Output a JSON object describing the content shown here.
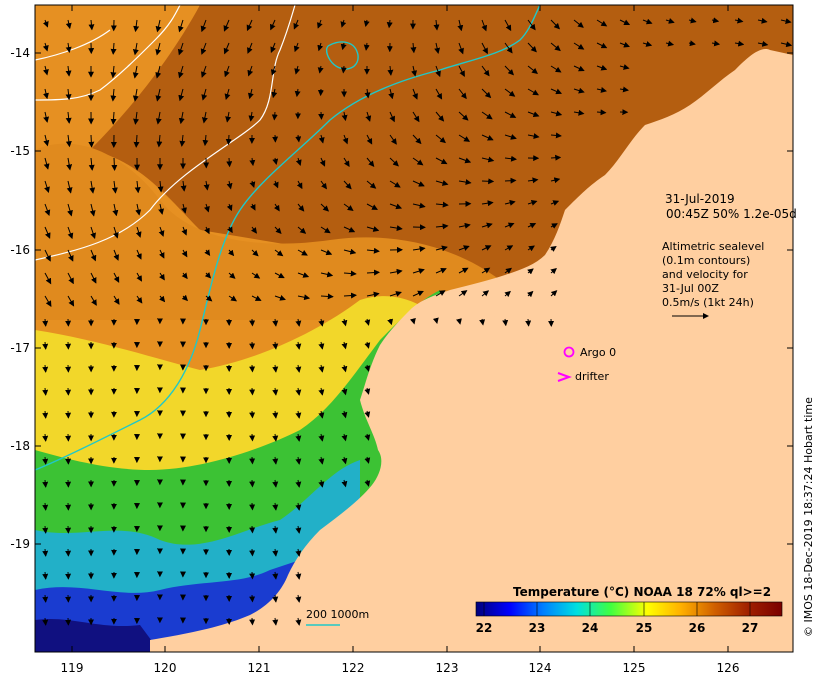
{
  "map": {
    "lon_ticks": [
      "119",
      "120",
      "121",
      "122",
      "123",
      "124",
      "125",
      "126"
    ],
    "lat_ticks": [
      "-14",
      "-15",
      "-16",
      "-17",
      "-18",
      "-19"
    ],
    "info": {
      "date": "31-Jul-2019",
      "time_line": "00:45Z  50% 1.2e-05d",
      "alt_line1": "Altimetric sealevel",
      "alt_line2": "(0.1m contours)",
      "alt_line3": "and velocity for",
      "alt_line4": "31-Jul 00Z",
      "alt_line5": "0.5m/s (1kt 24h)"
    },
    "legend": {
      "argo_label": "Argo 0",
      "drifter_label": "drifter",
      "argo_color": "#ff00ff",
      "drifter_color": "#ff00ff",
      "isobath_label": "200  1000m",
      "isobath_color": "#20c8c8"
    },
    "colorbar": {
      "title": "Temperature (°C) NOAA 18 72% ql>=2",
      "ticks": [
        "22",
        "23",
        "24",
        "25",
        "26",
        "27"
      ],
      "colors": [
        "#00007a",
        "#0000ff",
        "#0080ff",
        "#00e0e0",
        "#40ff40",
        "#ffff00",
        "#ffb000",
        "#d06000",
        "#a02000",
        "#7a0000"
      ]
    },
    "credit": "© IMOS 18-Dec-2019 18:37:24 Hobart time",
    "colors": {
      "land": "#ffcfa0",
      "warm": "#b45e10",
      "orange": "#e69022",
      "yellow": "#f2d72a",
      "green": "#3cc234",
      "cyan": "#22b0c8",
      "blue": "#1a3cd0",
      "navy": "#101080",
      "isobath": "#20c8c8",
      "contour": "#ffffff"
    }
  }
}
